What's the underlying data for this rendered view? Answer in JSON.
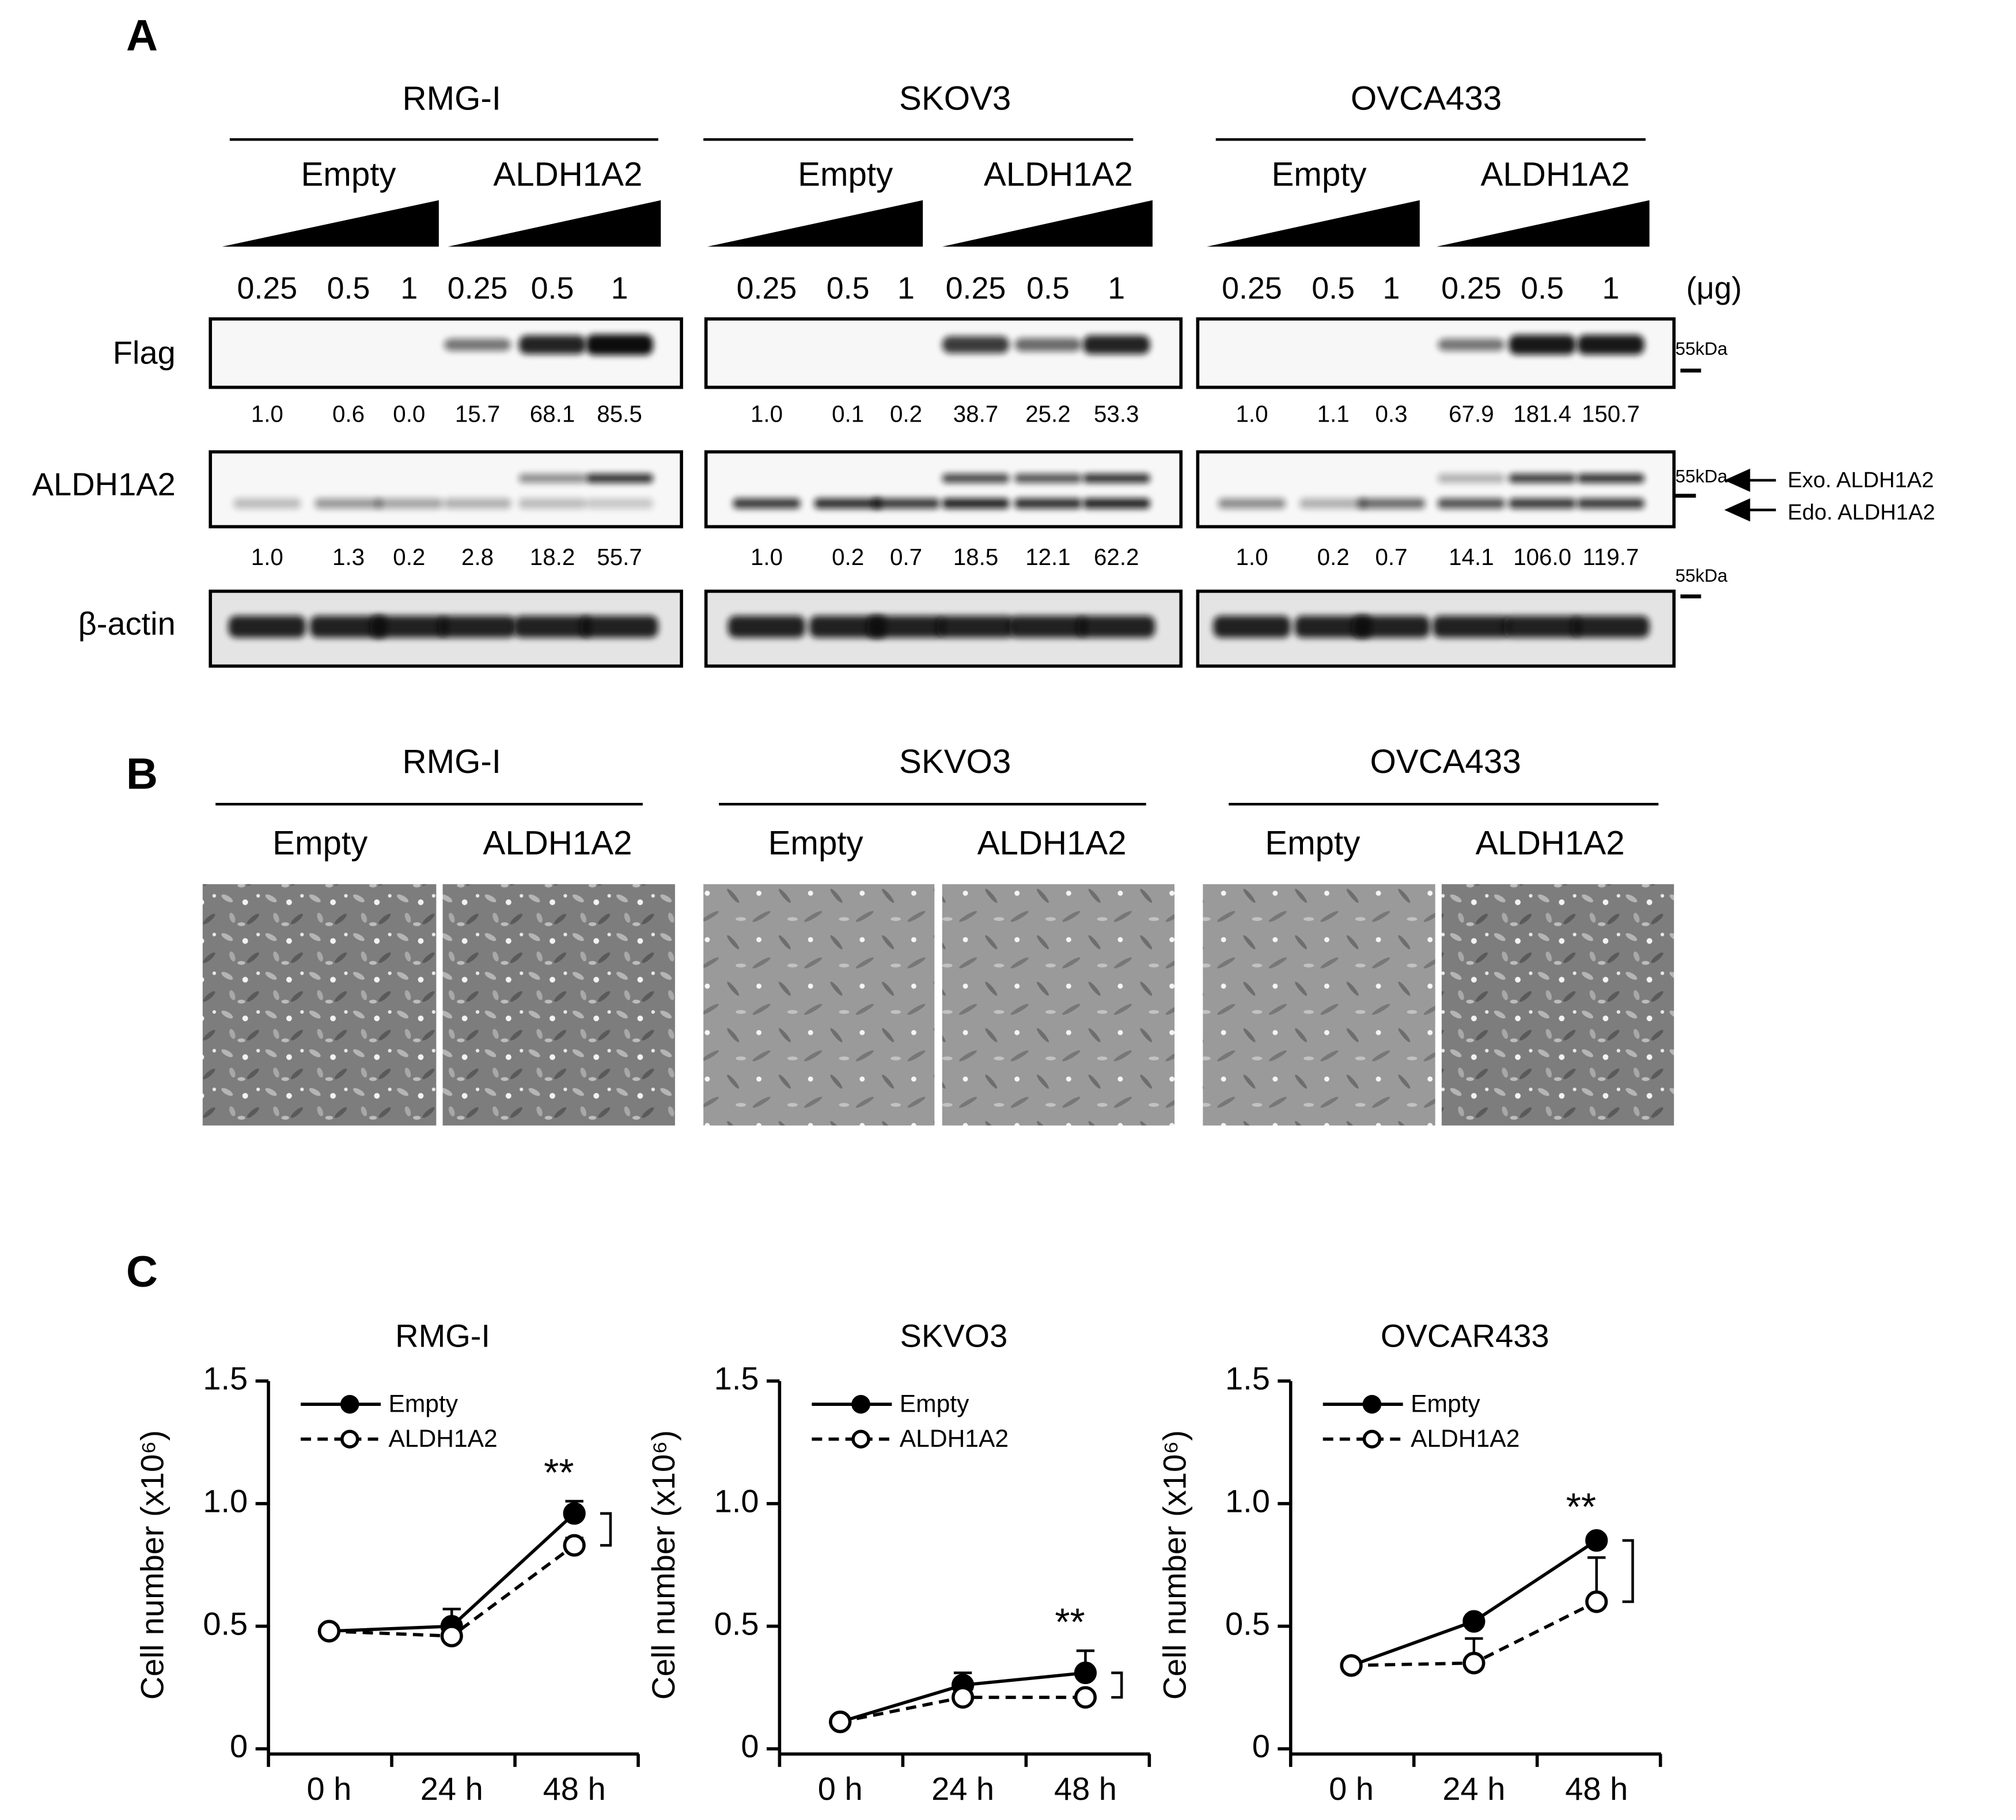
{
  "panel_a": {
    "label": "A",
    "dose_unit": "(μg)",
    "rows": [
      "Flag",
      "ALDH1A2",
      "β-actin"
    ],
    "markers": [
      "55kDa",
      "55kDa",
      "55kDa"
    ],
    "arrows": [
      "Exo. ALDH1A2",
      "Edo. ALDH1A2"
    ],
    "groups": [
      {
        "cell_line": "RMG-I",
        "conditions": [
          "Empty",
          "ALDH1A2"
        ],
        "doses": [
          "0.25",
          "0.5",
          "1",
          "0.25",
          "0.5",
          "1"
        ],
        "flag_quant": [
          "1.0",
          "0.6",
          "0.0",
          "15.7",
          "68.1",
          "85.5"
        ],
        "aldh_quant": [
          "1.0",
          "1.3",
          "0.2",
          "2.8",
          "18.2",
          "55.7"
        ]
      },
      {
        "cell_line": "SKOV3",
        "conditions": [
          "Empty",
          "ALDH1A2"
        ],
        "doses": [
          "0.25",
          "0.5",
          "1",
          "0.25",
          "0.5",
          "1"
        ],
        "flag_quant": [
          "1.0",
          "0.1",
          "0.2",
          "38.7",
          "25.2",
          "53.3"
        ],
        "aldh_quant": [
          "1.0",
          "0.2",
          "0.7",
          "18.5",
          "12.1",
          "62.2"
        ]
      },
      {
        "cell_line": "OVCA433",
        "conditions": [
          "Empty",
          "ALDH1A2"
        ],
        "doses": [
          "0.25",
          "0.5",
          "1",
          "0.25",
          "0.5",
          "1"
        ],
        "flag_quant": [
          "1.0",
          "1.1",
          "0.3",
          "67.9",
          "181.4",
          "150.7"
        ],
        "aldh_quant": [
          "1.0",
          "0.2",
          "0.7",
          "14.1",
          "106.0",
          "119.7"
        ]
      }
    ]
  },
  "panel_b": {
    "label": "B",
    "groups": [
      {
        "cell_line": "RMG-I",
        "conditions": [
          "Empty",
          "ALDH1A2"
        ]
      },
      {
        "cell_line": "SKVO3",
        "conditions": [
          "Empty",
          "ALDH1A2"
        ]
      },
      {
        "cell_line": "OVCA433",
        "conditions": [
          "Empty",
          "ALDH1A2"
        ]
      }
    ]
  },
  "panel_c": {
    "label": "C"
  },
  "chart_data": [
    {
      "type": "line",
      "title": "RMG-I",
      "y_label": "Cell number (x10⁶)",
      "categories": [
        "0 h",
        "24 h",
        "48 h"
      ],
      "ylim": [
        0,
        1.5
      ],
      "yticks": [
        0,
        0.5,
        {
          "value": 1,
          "label": "1.0"
        },
        1.5
      ],
      "annotation": "**",
      "series": [
        {
          "name": "Empty",
          "color": "#000000",
          "style": "solid",
          "marker": "filled",
          "values": [
            0.48,
            0.5,
            0.96
          ],
          "errors": [
            0,
            0.07,
            0.05
          ]
        },
        {
          "name": "ALDH1A2",
          "color": "#000000",
          "style": "dashed",
          "marker": "open",
          "values": [
            0.48,
            0.46,
            0.83
          ],
          "errors": [
            0,
            0.02,
            0.03
          ]
        }
      ]
    },
    {
      "type": "line",
      "title": "SKVO3",
      "y_label": "Cell number (x10⁶)",
      "categories": [
        "0 h",
        "24 h",
        "48 h"
      ],
      "ylim": [
        0,
        1.5
      ],
      "yticks": [
        0,
        0.5,
        {
          "value": 1,
          "label": "1.0"
        },
        1.5
      ],
      "annotation": "**",
      "series": [
        {
          "name": "Empty",
          "color": "#000000",
          "style": "solid",
          "marker": "filled",
          "values": [
            0.11,
            0.26,
            0.31
          ],
          "errors": [
            0,
            0.05,
            0.09
          ]
        },
        {
          "name": "ALDH1A2",
          "color": "#000000",
          "style": "dashed",
          "marker": "open",
          "values": [
            0.11,
            0.21,
            0.21
          ],
          "errors": [
            0,
            0.02,
            0.02
          ]
        }
      ]
    },
    {
      "type": "line",
      "title": "OVCAR433",
      "y_label": "Cell number (x10⁶)",
      "categories": [
        "0 h",
        "24 h",
        "48 h"
      ],
      "ylim": [
        0,
        1.5
      ],
      "yticks": [
        0,
        0.5,
        {
          "value": 1,
          "label": "1.0"
        },
        1.5
      ],
      "annotation": "**",
      "series": [
        {
          "name": "Empty",
          "color": "#000000",
          "style": "solid",
          "marker": "filled",
          "values": [
            0.34,
            0.52,
            0.85
          ],
          "errors": [
            0,
            0.02,
            0.02
          ]
        },
        {
          "name": "ALDH1A2",
          "color": "#000000",
          "style": "dashed",
          "marker": "open",
          "values": [
            0.34,
            0.35,
            0.6
          ],
          "errors": [
            0,
            0.1,
            0.18
          ]
        }
      ]
    }
  ]
}
